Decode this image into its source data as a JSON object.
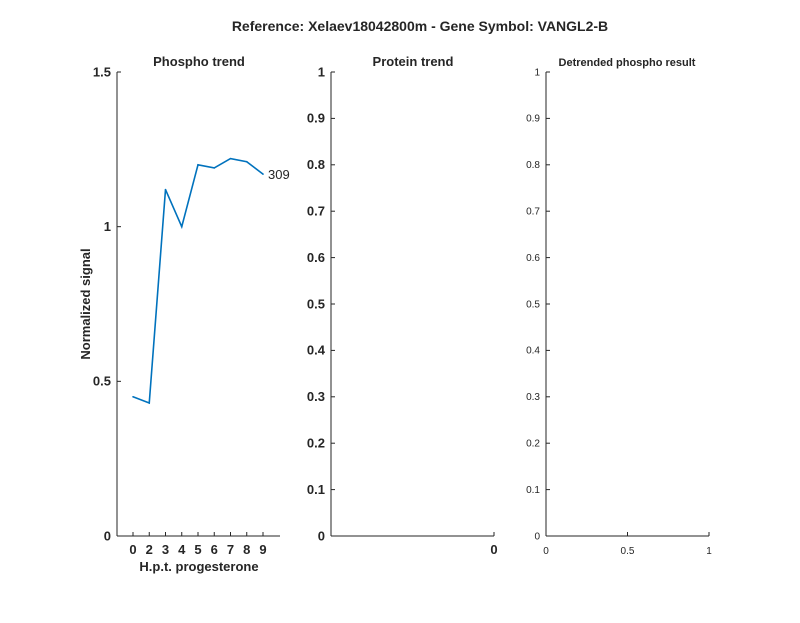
{
  "figure": {
    "title": "Reference:  Xelaev18042800m - Gene Symbol:  VANGL2-B"
  },
  "colors": {
    "series": "#0072BD",
    "axis": "#262626"
  },
  "chart_data": [
    {
      "type": "line",
      "title": "Phospho trend",
      "xlabel": "H.p.t. progesterone",
      "ylabel": "Normalized signal",
      "xticks": [
        "0",
        "2",
        "3",
        "4",
        "5",
        "6",
        "7",
        "8",
        "9"
      ],
      "ylim": [
        0,
        1.5
      ],
      "yticks": [
        "0",
        "0.5",
        "1",
        "1.5"
      ],
      "series": [
        {
          "name": "",
          "values": [
            0.45,
            0.43,
            1.12,
            1.0,
            1.2,
            1.19,
            1.22,
            1.21,
            1.17
          ]
        }
      ],
      "annotation": "309",
      "grid": false
    },
    {
      "type": "line",
      "title": "Protein trend",
      "xlabel": "",
      "ylabel": "",
      "xticks": [
        "0"
      ],
      "ylim": [
        0,
        1
      ],
      "yticks": [
        "0",
        "0.1",
        "0.2",
        "0.3",
        "0.4",
        "0.5",
        "0.6",
        "0.7",
        "0.8",
        "0.9",
        "1"
      ],
      "series": [],
      "grid": false
    },
    {
      "type": "line",
      "title": "Detrended phospho result",
      "xlabel": "",
      "ylabel": "",
      "xticks": [
        "0",
        "0.5",
        "1"
      ],
      "xlim": [
        0,
        1
      ],
      "ylim": [
        0,
        1
      ],
      "yticks": [
        "0",
        "0.1",
        "0.2",
        "0.3",
        "0.4",
        "0.5",
        "0.6",
        "0.7",
        "0.8",
        "0.9",
        "1"
      ],
      "series": [],
      "grid": false
    }
  ]
}
